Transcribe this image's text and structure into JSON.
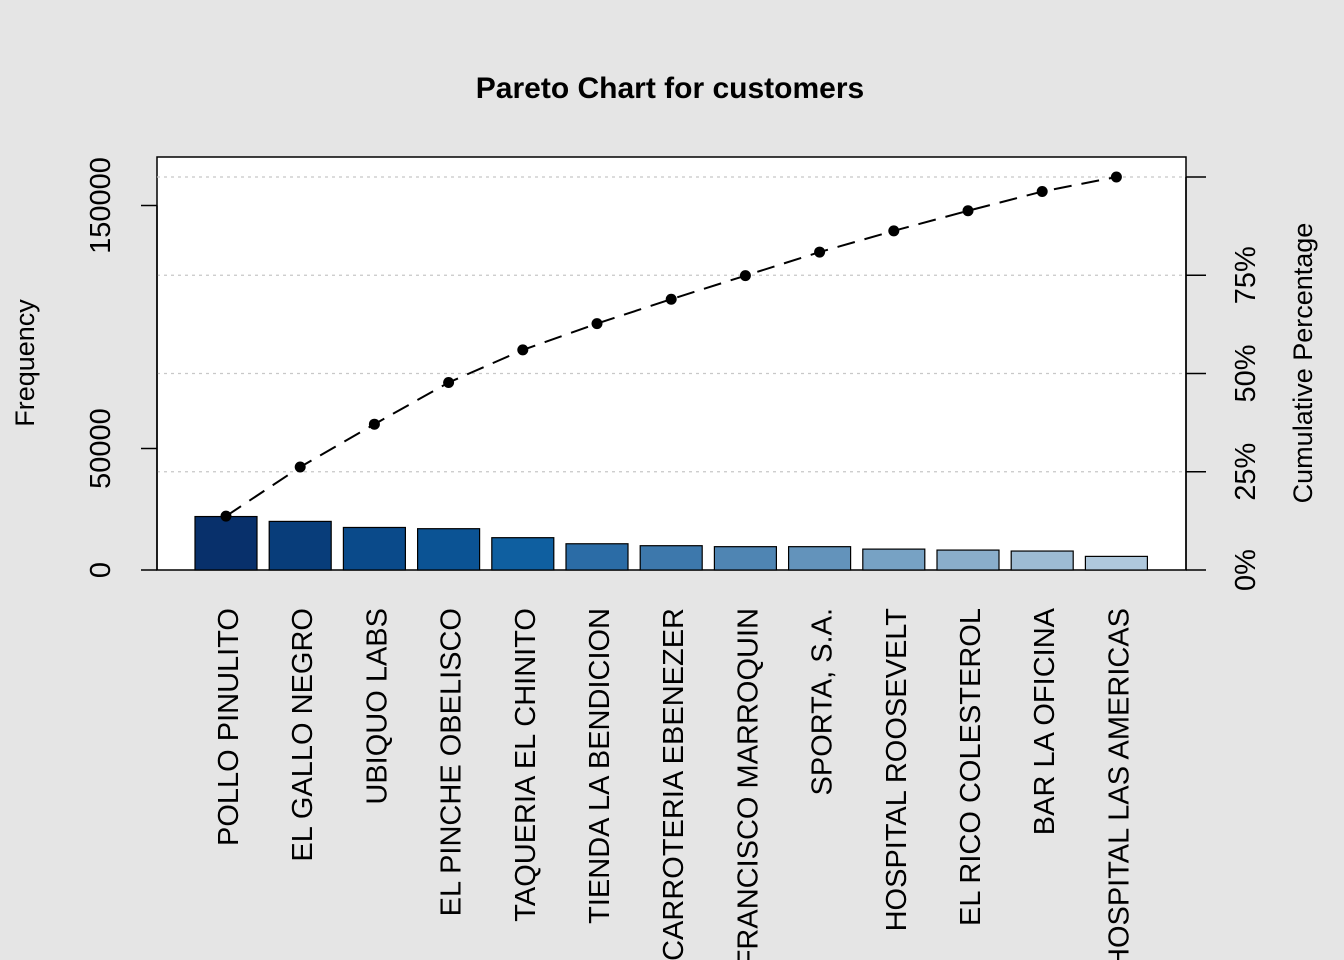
{
  "chart_data": {
    "type": "bar",
    "title": "Pareto Chart for customers",
    "ylabel": "Frequency",
    "ylabel_right": "Cumulative Percentage",
    "ylim": [
      0,
      170000
    ],
    "y_ticks": [
      0,
      50000,
      150000
    ],
    "y_tick_labels": [
      "0",
      "50000",
      "150000"
    ],
    "right_ticks": [
      0,
      25,
      50,
      75
    ],
    "right_tick_labels": [
      "0%",
      "25%",
      "50%",
      "75%"
    ],
    "categories": [
      "POLLO PINULITO",
      "EL GALLO NEGRO",
      "UBIQUO LABS",
      "EL PINCHE OBELISCO",
      "TAQUERIA EL CHINITO",
      "TIENDA LA BENDICION",
      "CARROTERIA EBENEZER",
      "FRANCISCO MARROQUIN",
      "SPORTA, S.A.",
      "HOSPITAL ROOSEVELT",
      "EL RICO COLESTEROL",
      "BAR LA OFICINA",
      "HOSPITAL LAS AMERICAS"
    ],
    "values": [
      22000,
      20000,
      17500,
      17000,
      13300,
      10800,
      10000,
      9600,
      9600,
      8600,
      8200,
      7800,
      5600
    ],
    "cumulative_percent": [
      13.7,
      26.2,
      37.1,
      47.7,
      56.0,
      62.7,
      68.9,
      74.9,
      80.9,
      86.3,
      91.4,
      96.3,
      100.0
    ],
    "grid": true,
    "bar_colors": [
      "#08306b",
      "#083d7a",
      "#0a4a8a",
      "#0b5394",
      "#0f5fa0",
      "#2b6ca6",
      "#3d78ac",
      "#4f85b3",
      "#6393bb",
      "#77a2c4",
      "#8aaecb",
      "#9dbbd3",
      "#afc8dc"
    ],
    "line_color": "#000000"
  }
}
